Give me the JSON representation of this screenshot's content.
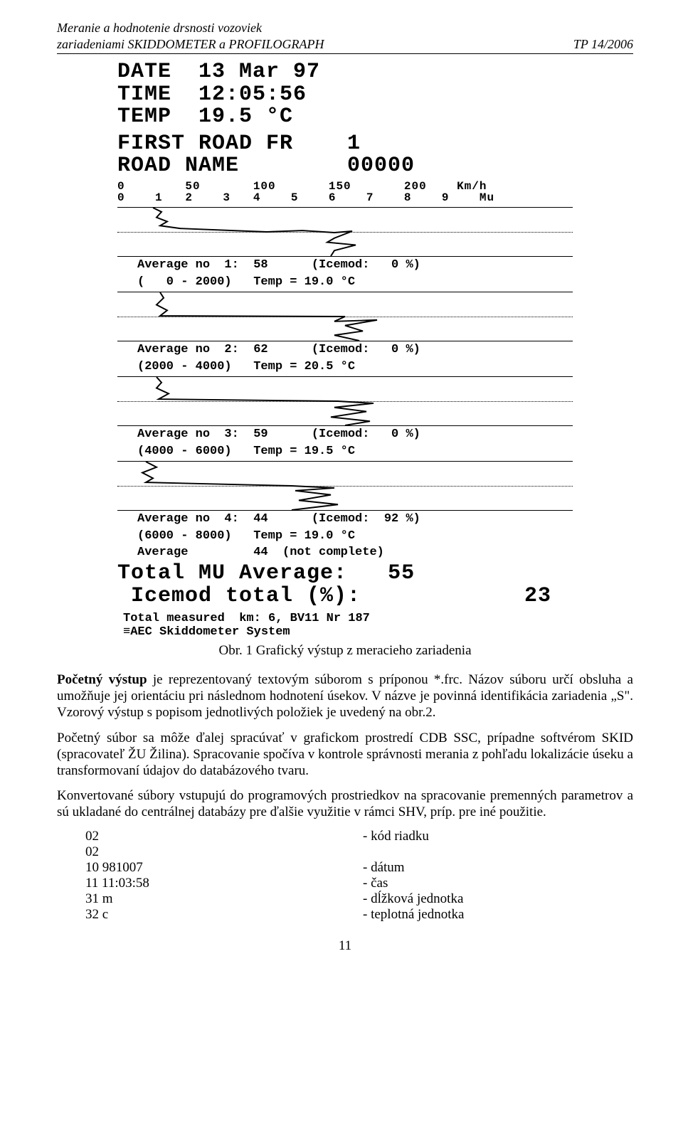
{
  "header": {
    "left_line1": "Meranie a hodnotenie drsnosti vozoviek",
    "left_line2": "zariadeniami SKIDDOMETER a PROFILOGRAPH",
    "right": "TP  14/2006"
  },
  "printout": {
    "date_label": "DATE  13 Mar 97",
    "time_label": "TIME  12:05:56",
    "temp_label": "TEMP  19.5 °C",
    "first_road": "FIRST ROAD FR    1",
    "road_name": "ROAD NAME        00000",
    "axis_top": "0        50       100       150       200    Km/h",
    "axis_bot": "0    1   2    3   4    5    6    7    8    9    Mu",
    "strips": [
      {
        "caption1": "Average no  1:  58      (Icemod:   0 %)",
        "caption2": "(   0 - 2000)   Temp = 19.0 °C",
        "poly": "50,0 62,6 55,14 70,20 60,26 88,30 210,35 260,33 305,36 330,34 305,44 295,50 335,54 305,62 300,70"
      },
      {
        "caption1": "Average no  2:  62      (Icemod:   0 %)",
        "caption2": "(2000 - 4000)   Temp = 20.5 °C",
        "poly": "60,0 65,8 55,18 70,26 60,34 320,35 305,42 365,40 320,48 345,56 305,62 340,70"
      },
      {
        "caption1": "Average no  3:  59      (Icemod:   0 %)",
        "caption2": "(4000 - 6000)   Temp = 19.5 °C",
        "poly": "55,0 62,8 55,16 72,24 58,32 310,35 360,38 305,44 350,50 300,58 355,64 320,70"
      },
      {
        "caption1": "Average no  4:  44      (Icemod:  92 %)",
        "caption2": "(6000 - 8000)   Temp = 19.0 °C",
        "poly": "40,0 55,8 35,16 50,24 40,30 245,35 305,38 250,42 300,48 255,56 310,62 245,70"
      }
    ],
    "avg_line": "Average         44  (not complete)",
    "total_mu_label": "Total MU Average:",
    "total_mu_value": "55",
    "icemod_label": " Icemod total (%):",
    "icemod_value": "23",
    "measured_line": "Total measured  km: 6, BV11 Nr 187",
    "system_line": "≡AEC Skiddometer System"
  },
  "figure_caption": "Obr. 1 Grafický výstup z meracieho zariadenia",
  "paragraphs": {
    "p1_lead": "Početný výstup",
    "p1": " je reprezentovaný textovým súborom s príponou *.frc. Názov súboru určí obsluha a umožňuje jej orientáciu pri následnom hodnotení úsekov. V názve je povinná identifikácia zariadenia „S\". Vzorový výstup s popisom jednotlivých položiek je uvedený na obr.2.",
    "p2": "Početný súbor sa môže ďalej spracúvať v grafickom prostredí CDB SSC, prípadne softvérom SKID (spracovateľ ŽU Žilina). Spracovanie spočíva v kontrole správnosti merania z pohľadu lokalizácie úseku a transformovaní údajov do databázového tvaru.",
    "p3": "Konvertované súbory vstupujú do programových prostriedkov na spracovanie premenných parametrov a sú ukladané do centrálnej databázy pre ďalšie využitie v rámci SHV, príp. pre iné použitie."
  },
  "list": [
    {
      "k": "02",
      "v": "- kód riadku"
    },
    {
      "k": "02",
      "v": ""
    },
    {
      "k": "10 981007",
      "v": "- dátum"
    },
    {
      "k": "11 11:03:58",
      "v": "- čas"
    },
    {
      "k": "31 m",
      "v": "- dĺžková jednotka"
    },
    {
      "k": "32 c",
      "v": "- teplotná jednotka"
    }
  ],
  "page_number": "11"
}
